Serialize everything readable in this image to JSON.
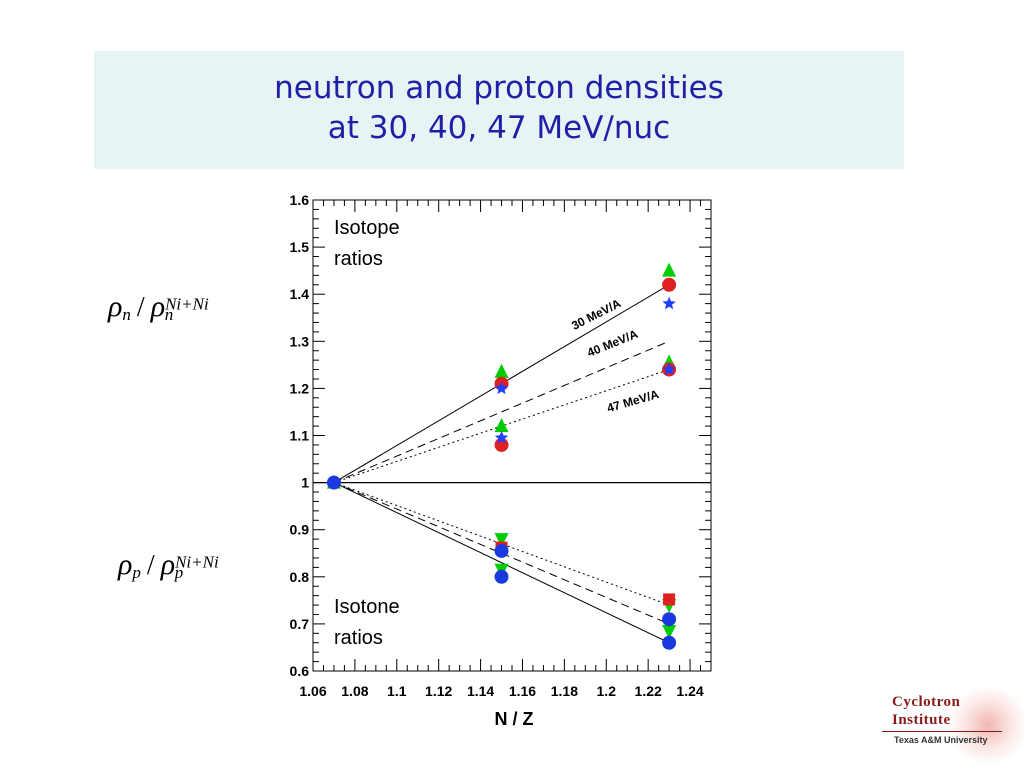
{
  "title": {
    "line1": "neutron and proton densities",
    "line2": "at 30, 40, 47 MeV/nuc"
  },
  "ylabel_top": {
    "rho": "ρ",
    "sub": "n",
    "slash": "/",
    "sup": "Ni+Ni"
  },
  "ylabel_bottom": {
    "rho": "ρ",
    "sub": "p",
    "slash": "/",
    "sup": "Ni+Ni"
  },
  "chart_data": {
    "type": "scatter",
    "xlabel": "N / Z",
    "ylabel": "",
    "xlim": [
      1.06,
      1.25
    ],
    "ylim": [
      0.6,
      1.6
    ],
    "xticks": [
      "1.06",
      "1.08",
      "1.1",
      "1.12",
      "1.14",
      "1.16",
      "1.18",
      "1.2",
      "1.22",
      "1.24"
    ],
    "yticks": [
      "0.6",
      "0.7",
      "0.8",
      "0.9",
      "1",
      "1.1",
      "1.2",
      "1.3",
      "1.4",
      "1.5",
      "1.6"
    ],
    "grid": false,
    "annotations": [
      "Isotope",
      "ratios",
      "Isotone",
      "ratios",
      "30 MeV/A",
      "40 MeV/A",
      "47 MeV/A"
    ],
    "reference_line_y": 1.0,
    "fit_lines": [
      {
        "label": "30 MeV/A",
        "style": "solid",
        "x": [
          1.07,
          1.23
        ],
        "y": [
          1.0,
          1.42
        ]
      },
      {
        "label": "40 MeV/A",
        "style": "dashed",
        "x": [
          1.07,
          1.23
        ],
        "y": [
          1.0,
          1.3
        ]
      },
      {
        "label": "47 MeV/A",
        "style": "dotted",
        "x": [
          1.07,
          1.23
        ],
        "y": [
          1.0,
          1.24
        ]
      },
      {
        "label": "",
        "style": "solid",
        "x": [
          1.07,
          1.23
        ],
        "y": [
          1.0,
          0.66
        ]
      },
      {
        "label": "",
        "style": "dashed",
        "x": [
          1.07,
          1.23
        ],
        "y": [
          1.0,
          0.7
        ]
      },
      {
        "label": "",
        "style": "dotted",
        "x": [
          1.07,
          1.23
        ],
        "y": [
          1.0,
          0.74
        ]
      }
    ],
    "series": [
      {
        "marker": "triangle-up",
        "color": "#00cc00",
        "points": [
          [
            1.07,
            1.0
          ],
          [
            1.15,
            1.235
          ],
          [
            1.15,
            1.12
          ],
          [
            1.23,
            1.45
          ],
          [
            1.23,
            1.255
          ]
        ]
      },
      {
        "marker": "circle",
        "color": "#e02020",
        "points": [
          [
            1.15,
            1.21
          ],
          [
            1.15,
            1.08
          ],
          [
            1.23,
            1.42
          ],
          [
            1.23,
            1.24
          ]
        ]
      },
      {
        "marker": "star",
        "color": "#2040ff",
        "points": [
          [
            1.15,
            1.2
          ],
          [
            1.15,
            1.095
          ],
          [
            1.23,
            1.38
          ],
          [
            1.23,
            1.24
          ]
        ]
      },
      {
        "marker": "triangle-down",
        "color": "#00cc00",
        "points": [
          [
            1.15,
            0.88
          ],
          [
            1.15,
            0.815
          ],
          [
            1.23,
            0.74
          ],
          [
            1.23,
            0.685
          ]
        ]
      },
      {
        "marker": "square",
        "color": "#e02020",
        "points": [
          [
            1.15,
            0.862
          ],
          [
            1.23,
            0.752
          ]
        ]
      },
      {
        "marker": "circle",
        "color": "#1a3adf",
        "points": [
          [
            1.07,
            1.0
          ],
          [
            1.15,
            0.855
          ],
          [
            1.15,
            0.8
          ],
          [
            1.23,
            0.71
          ],
          [
            1.23,
            0.66
          ]
        ]
      }
    ]
  },
  "logo": {
    "word1": "Cyclotron",
    "word2": "Institute",
    "sub": "Texas A&M University"
  },
  "colors": {
    "title": "#1f1fa8",
    "title_box": "#e8f4f4"
  }
}
